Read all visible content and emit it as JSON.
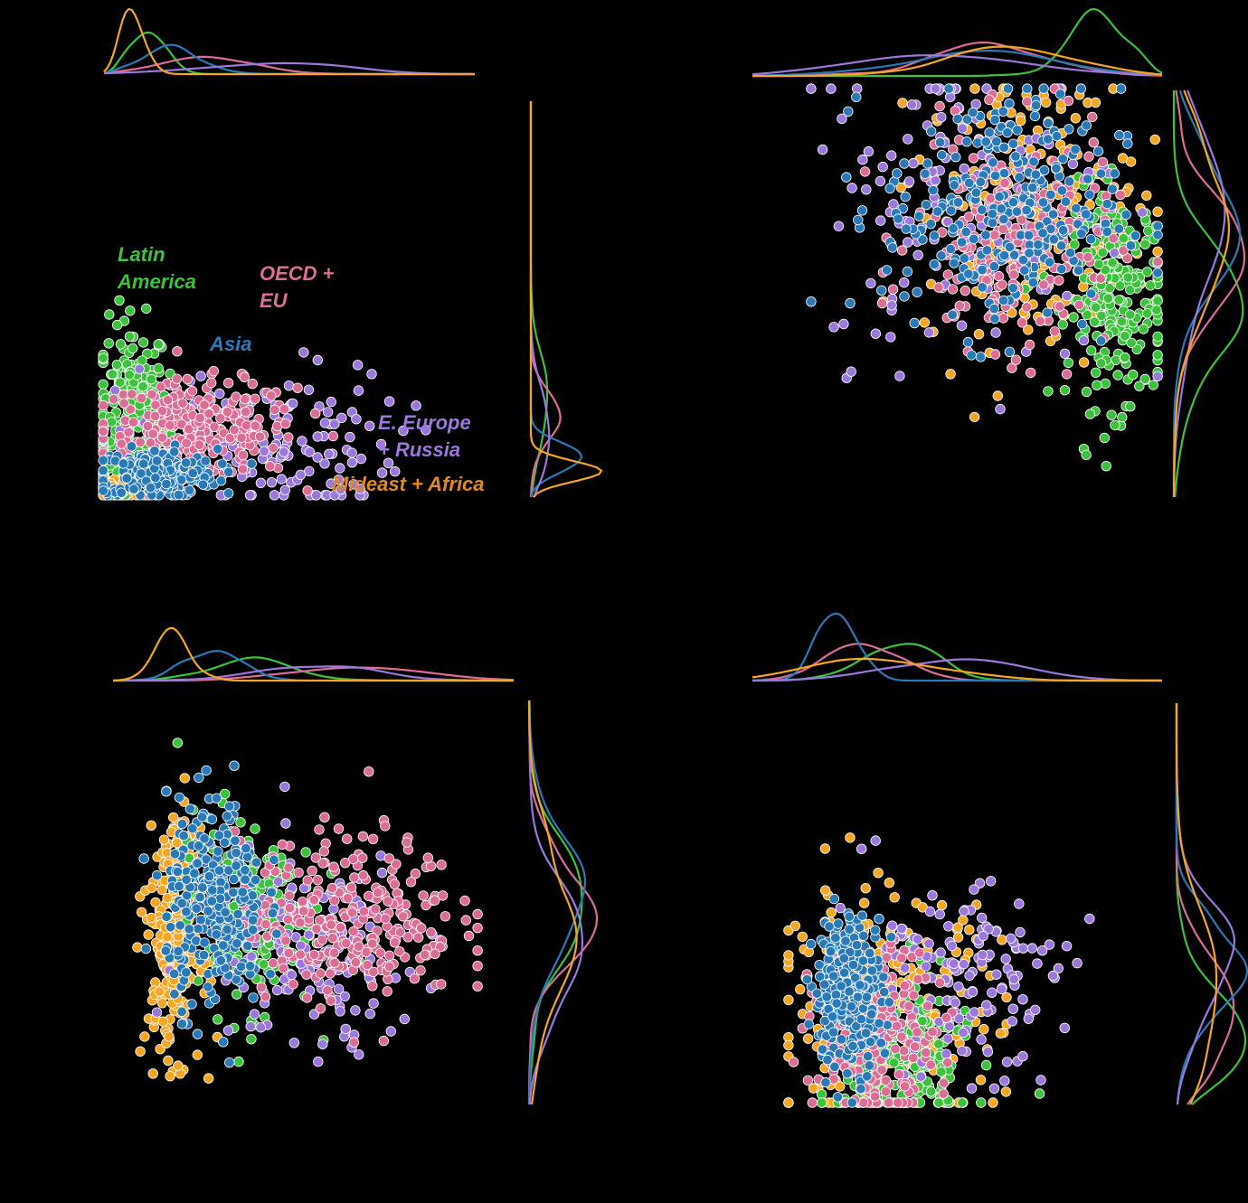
{
  "colors": {
    "background": "#000000",
    "Latin America": "#3cc23c",
    "OECD + EU": "#dc6e96",
    "Asia": "#2a7ab8",
    "E. Europe + Russia": "#9b78dc",
    "Mideast + Africa": "#f5a623",
    "Mideast + Africa label": "#e08a1e",
    "marker_edge": "#ffffff"
  },
  "legend_labels": {
    "latin_line1": "Latin",
    "latin_line2": "America",
    "oecd_line1": "OECD +",
    "oecd_line2": "EU",
    "asia": "Asia",
    "eeurope_line1": "E. Europe",
    "eeurope_line2": "+ Russia",
    "mideast": "Mideast + Africa"
  },
  "chart_data": [
    {
      "type": "scatter",
      "panel": "top-left",
      "title": "",
      "xlabel": "",
      "ylabel": "",
      "xlim": [
        0,
        100
      ],
      "ylim": [
        0,
        100
      ],
      "marginals": "kde",
      "legend": "inline-text",
      "series": [
        {
          "group": "Latin America",
          "cx": 8,
          "cy": 22,
          "sx": 5,
          "sy": 11,
          "n": 220
        },
        {
          "group": "OECD + EU",
          "cx": 26,
          "cy": 17,
          "sx": 13,
          "sy": 6,
          "n": 260
        },
        {
          "group": "Asia",
          "cx": 15,
          "cy": 6,
          "sx": 8,
          "sy": 3,
          "n": 240
        },
        {
          "group": "E. Europe + Russia",
          "cx": 42,
          "cy": 13,
          "sx": 19,
          "sy": 10,
          "n": 150
        },
        {
          "group": "Mideast + Africa",
          "cx": 3,
          "cy": 2,
          "sx": 3,
          "sy": 1.5,
          "n": 110
        }
      ]
    },
    {
      "type": "scatter",
      "panel": "top-right",
      "title": "",
      "xlabel": "",
      "ylabel": "",
      "xlim": [
        0,
        100
      ],
      "ylim": [
        0,
        100
      ],
      "marginals": "kde",
      "series": [
        {
          "group": "Latin America",
          "cx": 88,
          "cy": 45,
          "sx": 7,
          "sy": 14,
          "n": 230
        },
        {
          "group": "OECD + EU",
          "cx": 58,
          "cy": 60,
          "sx": 14,
          "sy": 14,
          "n": 230
        },
        {
          "group": "Asia",
          "cx": 55,
          "cy": 68,
          "sx": 17,
          "sy": 16,
          "n": 270
        },
        {
          "group": "E. Europe + Russia",
          "cx": 48,
          "cy": 72,
          "sx": 22,
          "sy": 22,
          "n": 150
        },
        {
          "group": "Mideast + Africa",
          "cx": 63,
          "cy": 68,
          "sx": 15,
          "sy": 18,
          "n": 230
        }
      ]
    },
    {
      "type": "scatter",
      "panel": "bottom-left",
      "title": "",
      "xlabel": "",
      "ylabel": "",
      "xlim": [
        0,
        100
      ],
      "ylim": [
        0,
        100
      ],
      "marginals": "kde",
      "series": [
        {
          "group": "Latin America",
          "cx": 32,
          "cy": 50,
          "sx": 10,
          "sy": 15,
          "n": 180
        },
        {
          "group": "OECD + EU",
          "cx": 62,
          "cy": 48,
          "sx": 16,
          "sy": 12,
          "n": 290
        },
        {
          "group": "Asia",
          "cx": 23,
          "cy": 52,
          "sx": 7,
          "sy": 15,
          "n": 290
        },
        {
          "group": "E. Europe + Russia",
          "cx": 50,
          "cy": 37,
          "sx": 16,
          "sy": 15,
          "n": 150
        },
        {
          "group": "Mideast + Africa",
          "cx": 11,
          "cy": 42,
          "sx": 4,
          "sy": 17,
          "n": 250
        }
      ]
    },
    {
      "type": "scatter",
      "panel": "bottom-right",
      "title": "",
      "xlabel": "",
      "ylabel": "",
      "xlim": [
        0,
        100
      ],
      "ylim": [
        0,
        100
      ],
      "marginals": "kde",
      "series": [
        {
          "group": "Latin America",
          "cx": 35,
          "cy": 14,
          "sx": 9,
          "sy": 12,
          "n": 220
        },
        {
          "group": "OECD + EU",
          "cx": 25,
          "cy": 20,
          "sx": 9,
          "sy": 12,
          "n": 230
        },
        {
          "group": "Asia",
          "cx": 18,
          "cy": 32,
          "sx": 5,
          "sy": 11,
          "n": 270
        },
        {
          "group": "E. Europe + Russia",
          "cx": 47,
          "cy": 35,
          "sx": 17,
          "sy": 13,
          "n": 160
        },
        {
          "group": "Mideast + Africa",
          "cx": 28,
          "cy": 25,
          "sx": 17,
          "sy": 18,
          "n": 240
        }
      ]
    }
  ]
}
